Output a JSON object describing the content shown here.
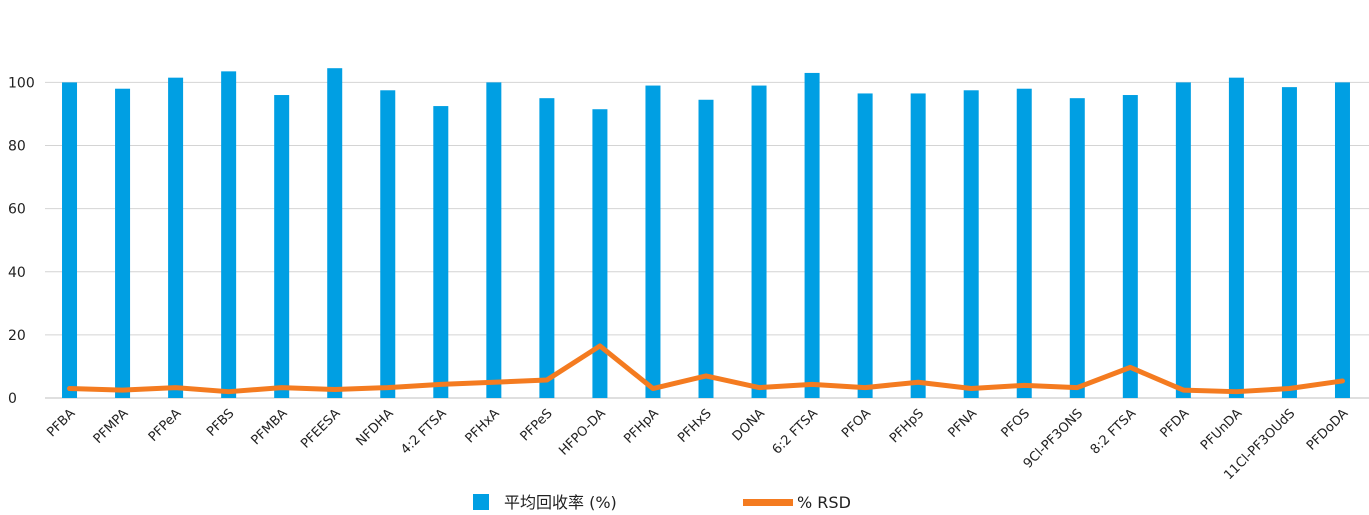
{
  "chart_data": {
    "type": "bar",
    "categories": [
      "PFBA",
      "PFMPA",
      "PFPeA",
      "PFBS",
      "PFMBA",
      "PFEESA",
      "NFDHA",
      "4:2 FTSA",
      "PFHxA",
      "PFPeS",
      "HFPO-DA",
      "PFHpA",
      "PFHxS",
      "DONA",
      "6:2 FTSA",
      "PFOA",
      "PFHpS",
      "PFNA",
      "PFOS",
      "9Cl-PF3ONS",
      "8:2 FTSA",
      "PFDA",
      "PFUnDA",
      "11Cl-PF3OUdS",
      "PFDoDA"
    ],
    "series": [
      {
        "name": "平均回收率 (%)",
        "kind": "bar",
        "color": "#009fe3",
        "values": [
          100,
          98,
          101.5,
          103.5,
          96,
          104.5,
          97.5,
          92.5,
          100,
          95,
          91.5,
          99,
          94.5,
          99,
          103,
          96.5,
          96.5,
          97.5,
          98,
          95,
          96,
          100,
          101.5,
          98.5,
          100
        ]
      },
      {
        "name": "% RSD",
        "kind": "line",
        "color": "#f47b20",
        "values": [
          3,
          2.5,
          3.3,
          2,
          3.3,
          2.7,
          3.3,
          4.3,
          5,
          5.7,
          16.5,
          3,
          7,
          3.3,
          4.3,
          3.3,
          5,
          3,
          4,
          3.3,
          9.7,
          2.5,
          2,
          3,
          5.4
        ]
      }
    ],
    "yticks": [
      0,
      20,
      40,
      60,
      80,
      100,
      150
    ],
    "ylim": [
      0,
      150
    ],
    "grid": true,
    "legend_position": "bottom-center"
  }
}
